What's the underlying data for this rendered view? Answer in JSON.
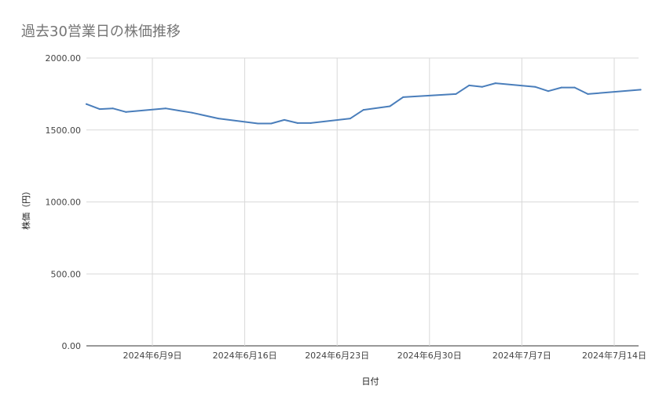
{
  "chart_data": {
    "type": "line",
    "title": "過去30営業日の株価推移",
    "xlabel": "日付",
    "ylabel": "株価（円）",
    "ylim": [
      0,
      2000
    ],
    "grid": true,
    "y_ticks": [
      "0.00",
      "500.00",
      "1000.00",
      "1500.00",
      "2000.00"
    ],
    "x_ticks": [
      "2024年6月9日",
      "2024年6月16日",
      "2024年6月23日",
      "2024年6月30日",
      "2024年7月7日",
      "2024年7月14日"
    ],
    "line_color": "#4a7ebb",
    "series": [
      {
        "points": [
          {
            "x": "2024-06-04",
            "y": 1680
          },
          {
            "x": "2024-06-05",
            "y": 1645
          },
          {
            "x": "2024-06-06",
            "y": 1650
          },
          {
            "x": "2024-06-07",
            "y": 1625
          },
          {
            "x": "2024-06-10",
            "y": 1650
          },
          {
            "x": "2024-06-11",
            "y": 1635
          },
          {
            "x": "2024-06-12",
            "y": 1620
          },
          {
            "x": "2024-06-14",
            "y": 1580
          },
          {
            "x": "2024-06-17",
            "y": 1545
          },
          {
            "x": "2024-06-18",
            "y": 1545
          },
          {
            "x": "2024-06-19",
            "y": 1570
          },
          {
            "x": "2024-06-20",
            "y": 1548
          },
          {
            "x": "2024-06-21",
            "y": 1548
          },
          {
            "x": "2024-06-24",
            "y": 1580
          },
          {
            "x": "2024-06-25",
            "y": 1640
          },
          {
            "x": "2024-06-27",
            "y": 1665
          },
          {
            "x": "2024-06-28",
            "y": 1728
          },
          {
            "x": "2024-07-02",
            "y": 1750
          },
          {
            "x": "2024-07-03",
            "y": 1810
          },
          {
            "x": "2024-07-04",
            "y": 1800
          },
          {
            "x": "2024-07-05",
            "y": 1825
          },
          {
            "x": "2024-07-08",
            "y": 1800
          },
          {
            "x": "2024-07-09",
            "y": 1770
          },
          {
            "x": "2024-07-10",
            "y": 1795
          },
          {
            "x": "2024-07-11",
            "y": 1795
          },
          {
            "x": "2024-07-12",
            "y": 1750
          },
          {
            "x": "2024-07-16",
            "y": 1780
          }
        ]
      }
    ]
  }
}
